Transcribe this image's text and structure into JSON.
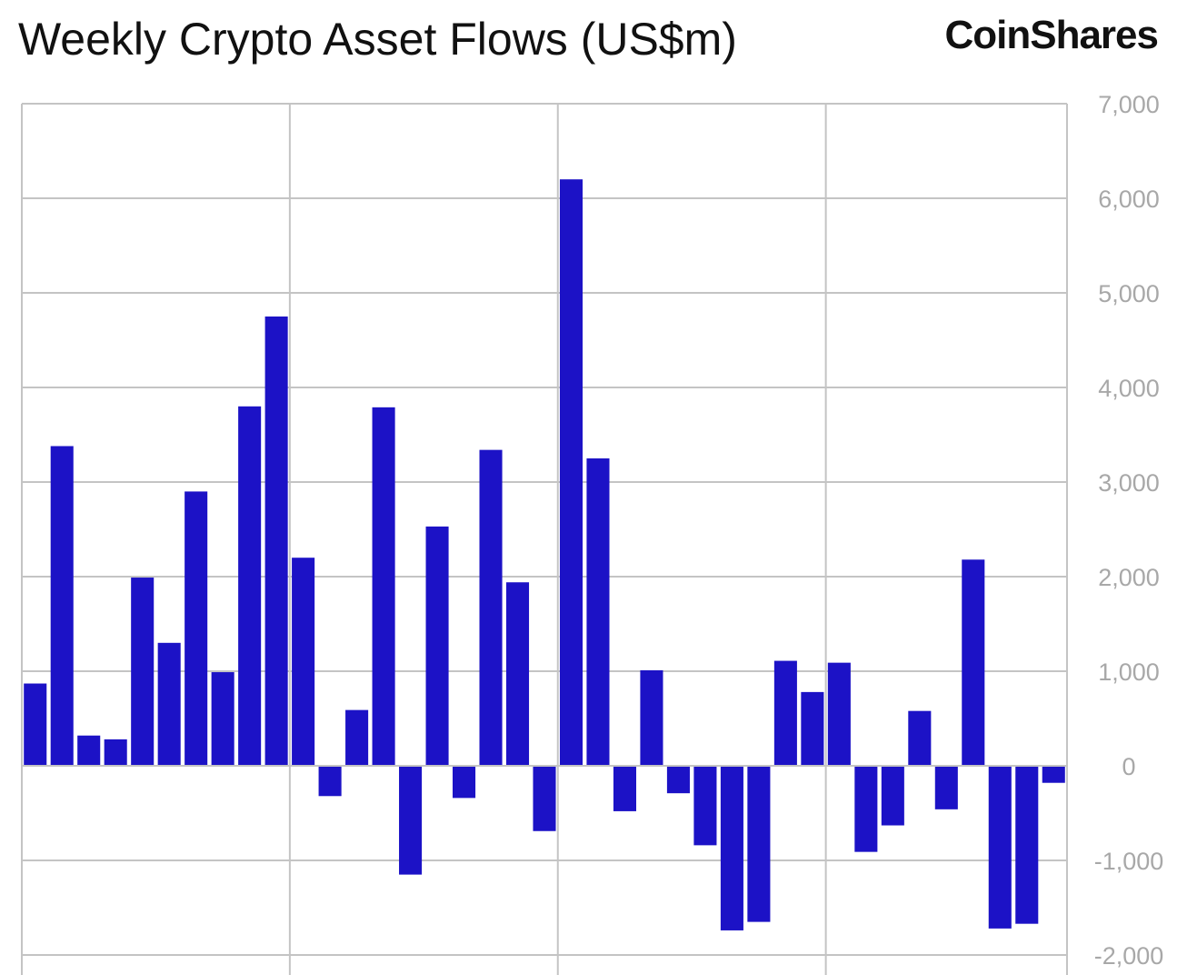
{
  "title": "Weekly Crypto Asset Flows (US$m)",
  "logo_text": "CoinShares",
  "colors": {
    "bar": "#1c12c6",
    "grid": "#c4c4c4",
    "tick_label": "#a8a8a8"
  },
  "chart_data": {
    "type": "bar",
    "title": "Weekly Crypto Asset Flows (US$m)",
    "xlabel": "",
    "ylabel": "",
    "ylim": [
      -2000,
      7000
    ],
    "yticks": [
      7000,
      6000,
      5000,
      4000,
      3000,
      2000,
      1000,
      0,
      -1000,
      -2000
    ],
    "ytick_labels": [
      "7,000",
      "6,000",
      "5,000",
      "4,000",
      "3,000",
      "2,000",
      "1,000",
      "0",
      "-1,000",
      "-2,000"
    ],
    "y_axis_position": "right",
    "grid": true,
    "values": [
      870,
      3380,
      320,
      280,
      1990,
      1300,
      2900,
      990,
      3800,
      4750,
      2200,
      -320,
      590,
      3790,
      -1150,
      2530,
      -340,
      3340,
      1940,
      -690,
      6200,
      3250,
      -480,
      1010,
      -290,
      -840,
      -1740,
      -1650,
      1110,
      780,
      1090,
      -910,
      -630,
      580,
      -460,
      2180,
      -1720,
      -1670,
      -180
    ]
  }
}
